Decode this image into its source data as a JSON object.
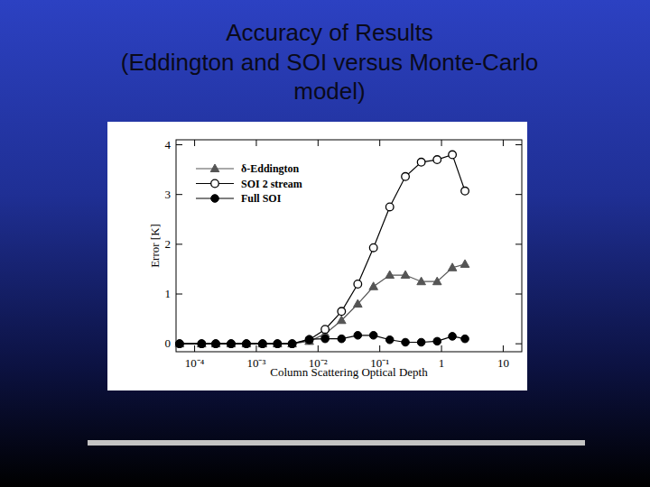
{
  "chart_data": {
    "type": "line",
    "title": [
      "Accuracy of Results",
      "(Eddington and SOI versus Monte-Carlo",
      "model)"
    ],
    "x_label": "Column Scattering Optical Depth",
    "y_label": "Error [K]",
    "log": "x",
    "legend": "top-left",
    "x": [
      5.7e-05,
      0.00013,
      0.00022,
      0.00039,
      0.00069,
      0.00126,
      0.0022,
      0.0038,
      0.0072,
      0.013,
      0.024,
      0.044,
      0.079,
      0.145,
      0.26,
      0.47,
      0.85,
      1.5,
      2.4
    ],
    "xlim": [
      5e-05,
      20
    ],
    "xticks": [
      {
        "value": 0.0001,
        "label": "10⁻⁴"
      },
      {
        "value": 0.001,
        "label": "10⁻³"
      },
      {
        "value": 0.01,
        "label": "10⁻²"
      },
      {
        "value": 0.1,
        "label": "10⁻¹"
      },
      1,
      10
    ],
    "ylim": [
      -0.16,
      4.1
    ],
    "yticks": [
      0,
      1,
      2,
      3,
      4
    ],
    "series": [
      {
        "name": "δ-Eddington",
        "color": "#555555",
        "marker": "triangle",
        "line_style": "solid",
        "values": [
          0,
          0,
          0,
          0,
          0,
          0,
          0,
          0,
          0.05,
          0.2,
          0.47,
          0.8,
          1.15,
          1.38,
          1.38,
          1.25,
          1.25,
          1.53,
          1.6
        ]
      },
      {
        "name": "SOI 2 stream",
        "color": "#000000",
        "marker": "open_circle",
        "line_style": "solid",
        "values": [
          0,
          0,
          0,
          0,
          0,
          0,
          0,
          0,
          0.08,
          0.29,
          0.65,
          1.2,
          1.93,
          2.75,
          3.36,
          3.65,
          3.7,
          3.8,
          3.07
        ]
      },
      {
        "name": "Full SOI",
        "color": "#000000",
        "marker": "circle",
        "line_style": "solid",
        "values": [
          0,
          0,
          0,
          0,
          0,
          0,
          0,
          0,
          0.09,
          0.1,
          0.1,
          0.17,
          0.17,
          0.08,
          0.03,
          0.03,
          0.05,
          0.15,
          0.1
        ]
      }
    ]
  }
}
